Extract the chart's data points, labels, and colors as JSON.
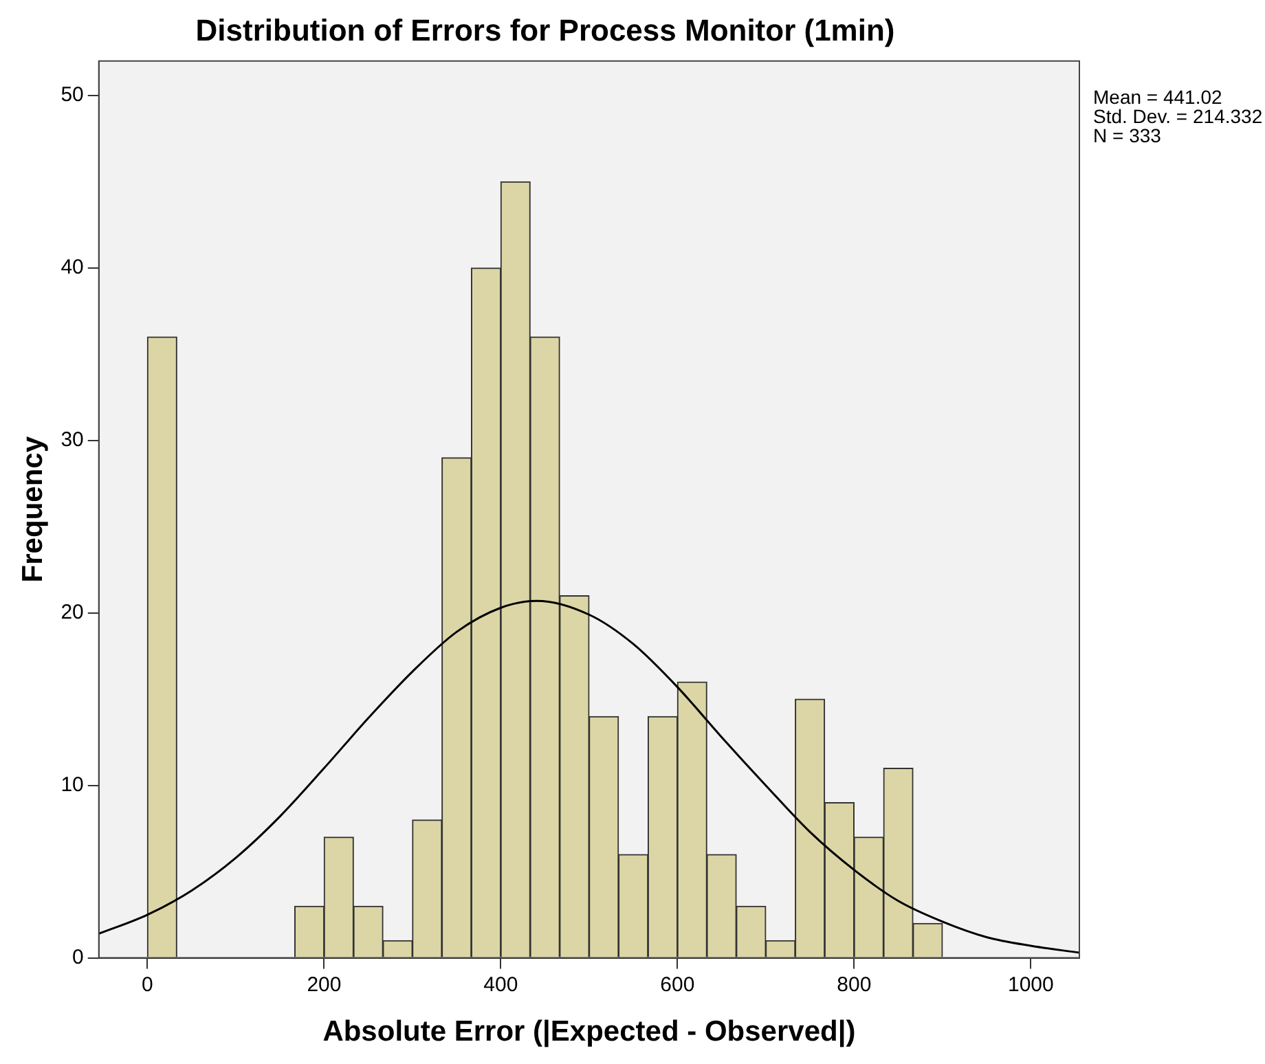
{
  "chart_data": {
    "type": "histogram",
    "title": "Distribution of Errors for Process Monitor (1min)",
    "xlabel": "Absolute Error (|Expected - Observed|)",
    "ylabel": "Frequency",
    "bins": [
      0,
      33.3,
      66.7,
      100,
      133.3,
      166.7,
      200,
      233.3,
      266.7,
      300,
      333.3,
      366.7,
      400,
      433.3,
      466.7,
      500,
      533.3,
      566.7,
      600,
      633.3,
      666.7,
      700,
      733.3,
      766.7,
      800,
      833.3,
      866.7,
      900
    ],
    "values": [
      36,
      0,
      0,
      0,
      0,
      3,
      7,
      3,
      1,
      8,
      29,
      40,
      45,
      36,
      21,
      14,
      6,
      14,
      16,
      6,
      3,
      1,
      15,
      9,
      7,
      11,
      2
    ],
    "color": "#dcd6a6",
    "series": [
      {
        "type": "line",
        "color": "#000000",
        "x": [
          -55,
          0,
          50,
          100,
          150,
          200,
          250,
          300,
          350,
          400,
          441,
          500,
          550,
          600,
          650,
          700,
          750,
          800,
          850,
          900,
          950,
          1000,
          1055
        ],
        "values": [
          1.4,
          2.5,
          3.9,
          5.8,
          8.2,
          11,
          13.9,
          16.6,
          18.9,
          20.3,
          20.7,
          19.9,
          18.2,
          15.7,
          12.8,
          10,
          7.3,
          5.1,
          3.3,
          2.1,
          1.2,
          0.7,
          0.3
        ]
      }
    ],
    "xlim": [
      -55,
      1055
    ],
    "xticks": [
      0,
      200,
      400,
      600,
      800,
      1000
    ],
    "ylim": [
      0,
      52
    ],
    "yticks": [
      0,
      10,
      20,
      30,
      40,
      50
    ],
    "grid": false,
    "legend": false,
    "marker": "none",
    "annotations": [
      "Mean = 441.02",
      "Std. Dev. = 214.332",
      "N = 333"
    ]
  }
}
